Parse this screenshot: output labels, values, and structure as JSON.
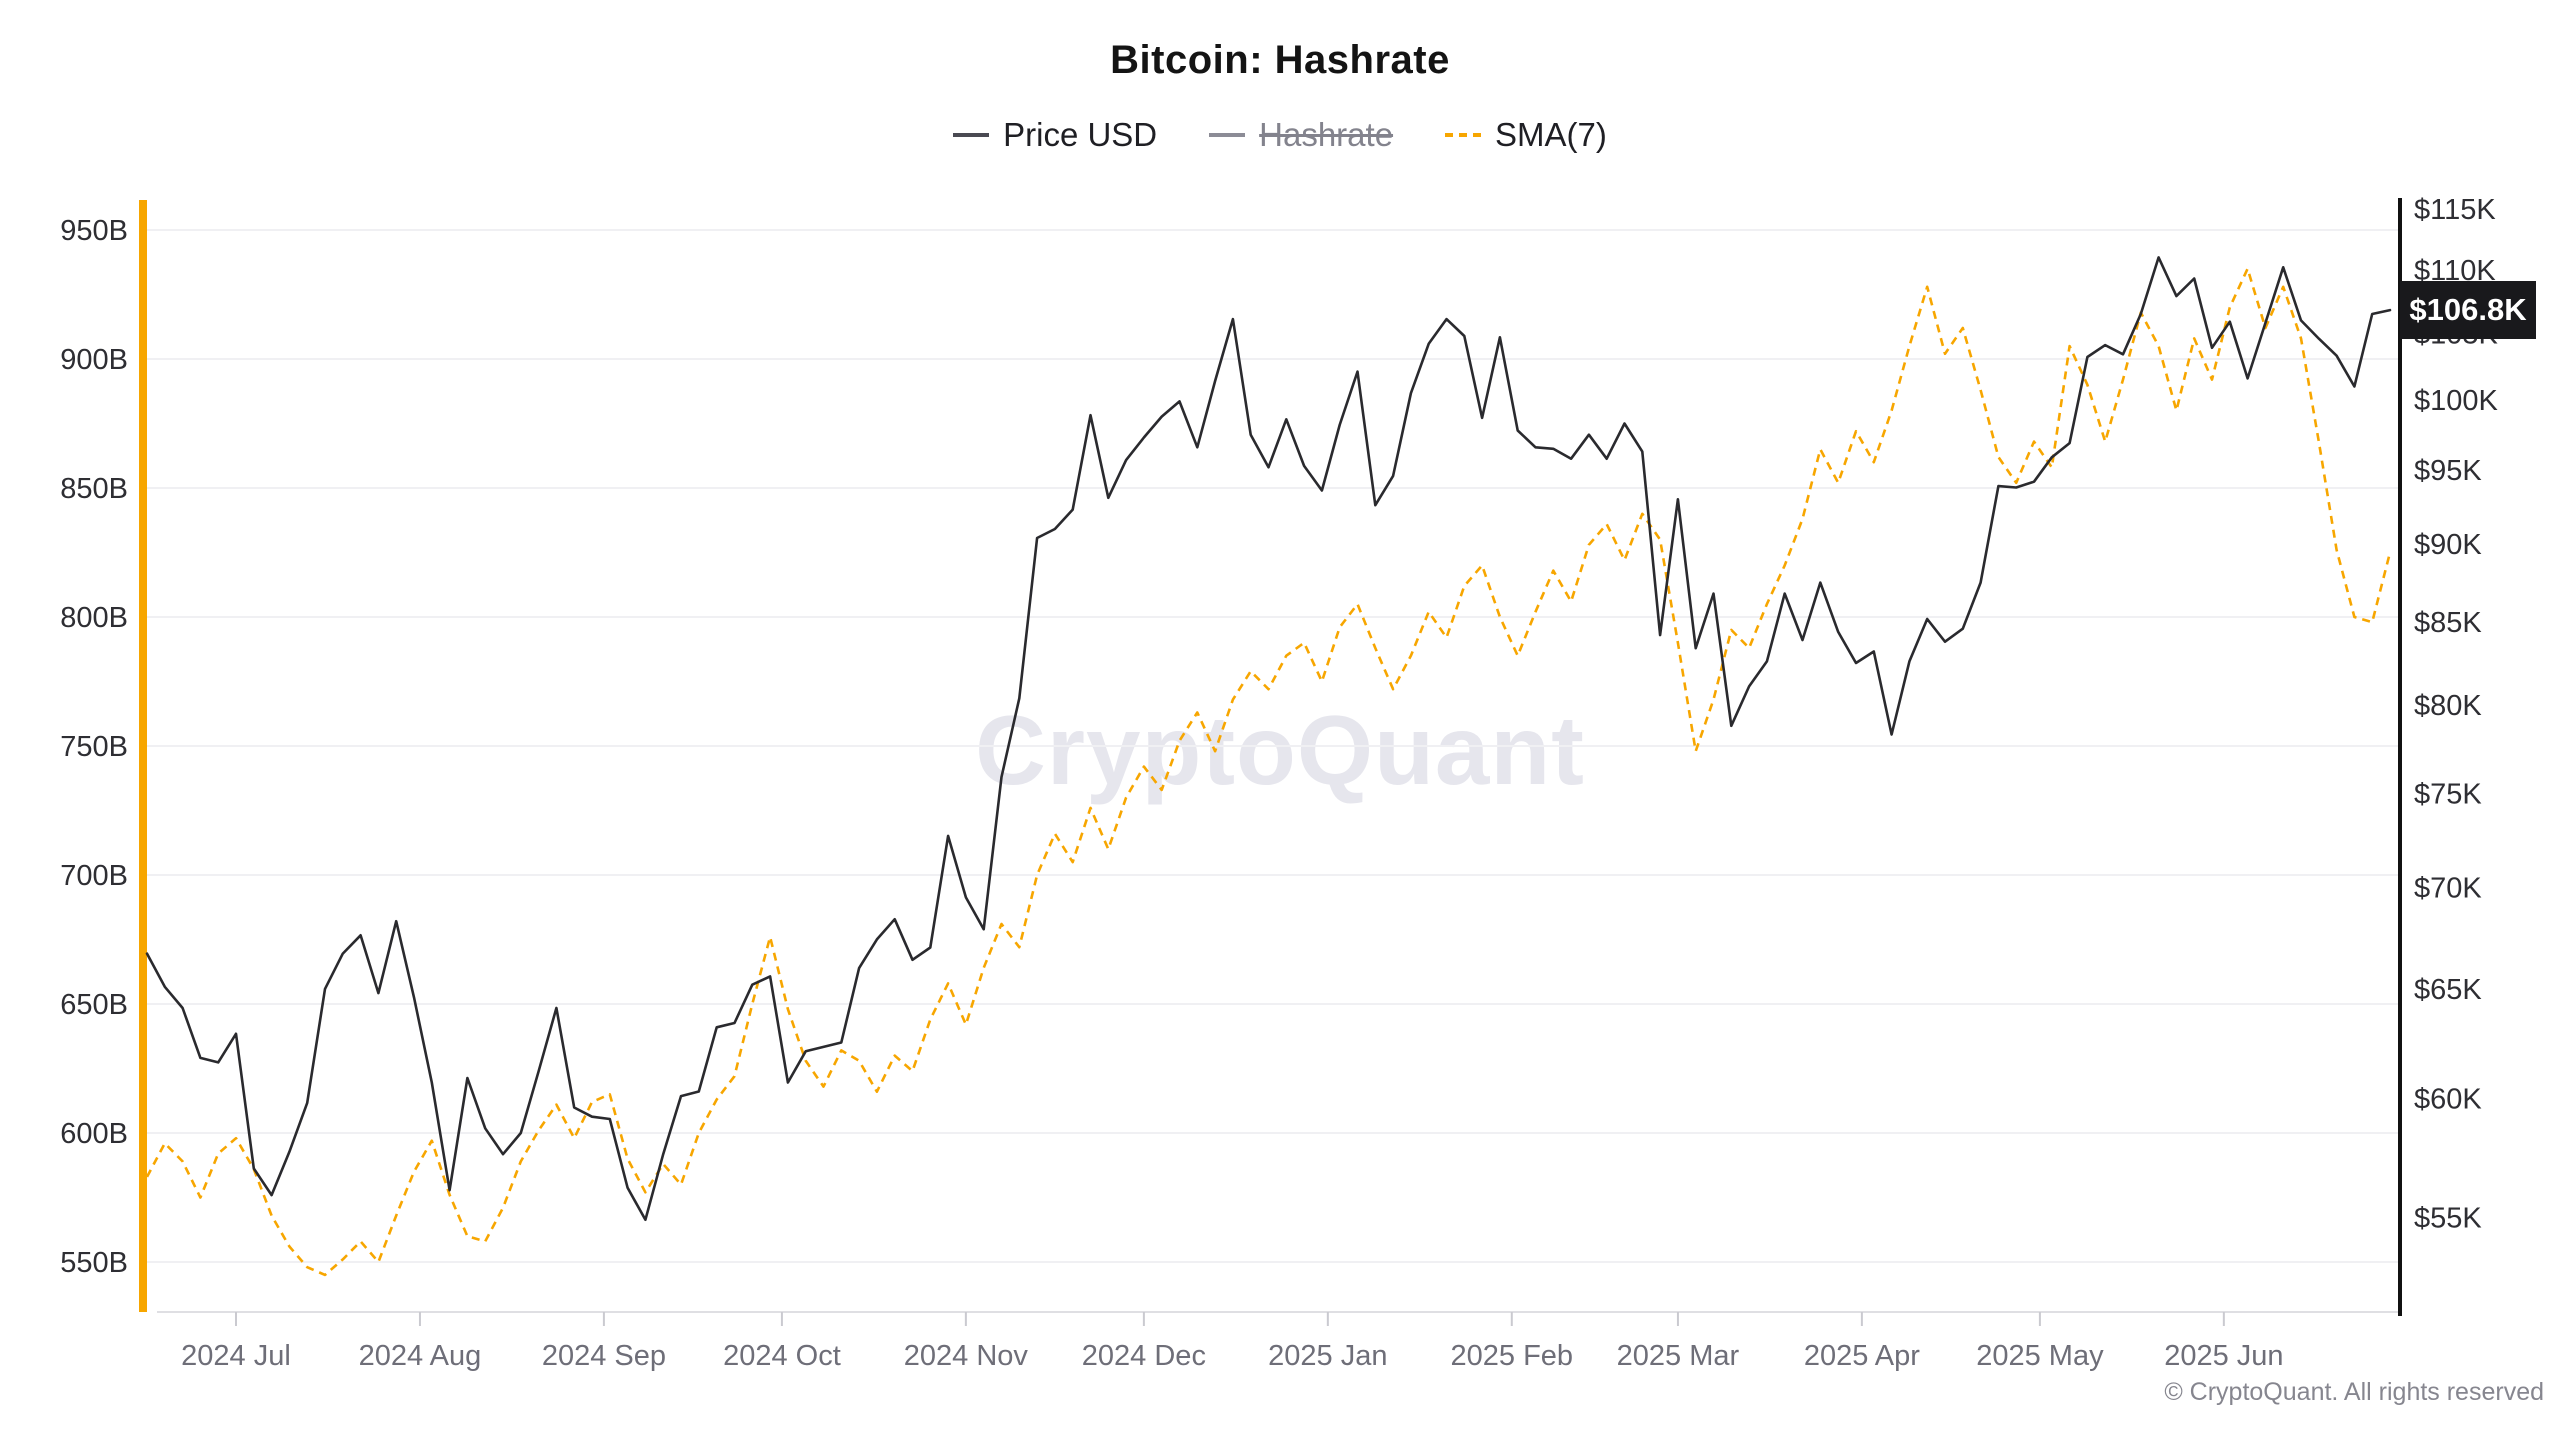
{
  "header": {
    "title": "Bitcoin: Hashrate"
  },
  "legend": [
    {
      "label": "Price USD",
      "color": "#4a4a52",
      "style": "solid",
      "disabled": false
    },
    {
      "label": "Hashrate",
      "color": "#8c8c96",
      "style": "solid",
      "disabled": true
    },
    {
      "label": "SMA(7)",
      "color": "#f7a600",
      "style": "dashed",
      "disabled": false
    }
  ],
  "price_badge": {
    "label": "$106.8K",
    "value": 106.8,
    "bg": "#19191c",
    "fg": "#ffffff"
  },
  "watermark": "CryptoQuant",
  "footer": {
    "copyright": "© CryptoQuant. All rights reserved"
  },
  "colors": {
    "accent_orange": "#f7a600",
    "price_line": "#2a2a2e",
    "sma_line": "#f7a600",
    "grid": "#f0f0f3",
    "axis_text": "#2e2e33",
    "month_text": "#6e6e78",
    "right_axis_line": "#111111",
    "bottom_axis_line": "#dfdfe3"
  },
  "chart_data": {
    "type": "line",
    "title": "Bitcoin: Hashrate",
    "x": {
      "start": "2024-06-16",
      "end": "2025-06-28",
      "n_points": 127,
      "interval_days": 3
    },
    "x_tick_labels": [
      "2024 Jul",
      "2024 Aug",
      "2024 Sep",
      "2024 Oct",
      "2024 Nov",
      "2024 Dec",
      "2025 Jan",
      "2025 Feb",
      "2025 Mar",
      "2025 Apr",
      "2025 May",
      "2025 Jun"
    ],
    "x_tick_day_offsets": [
      15,
      46,
      77,
      107,
      138,
      168,
      199,
      230,
      258,
      289,
      319,
      350
    ],
    "left_axis": {
      "name": "Hashrate",
      "scale": "linear",
      "tick_labels": [
        "950B",
        "900B",
        "850B",
        "800B",
        "750B",
        "700B",
        "650B",
        "600B",
        "550B"
      ],
      "tick_values": [
        950,
        900,
        850,
        800,
        750,
        700,
        650,
        600,
        550
      ],
      "range": [
        550,
        950
      ],
      "grid": true
    },
    "right_axis": {
      "name": "Price USD",
      "scale": "log",
      "tick_labels": [
        "$115K",
        "$110K",
        "$105K",
        "$100K",
        "$95K",
        "$90K",
        "$85K",
        "$80K",
        "$75K",
        "$70K",
        "$65K",
        "$60K",
        "$55K"
      ],
      "tick_values": [
        115,
        110,
        105,
        100,
        95,
        90,
        85,
        80,
        75,
        70,
        65,
        60,
        55
      ],
      "range": [
        55,
        115
      ],
      "grid": false
    },
    "series": [
      {
        "name": "Price USD",
        "axis": "right",
        "unit": "K USD",
        "style": "solid",
        "color": "#2a2a2e",
        "last_value_label": "$106.8K",
        "values": [
          66.7,
          65.1,
          64.1,
          61.8,
          61.6,
          62.9,
          57.0,
          55.9,
          57.7,
          59.8,
          65.0,
          66.7,
          67.6,
          64.8,
          68.3,
          64.6,
          60.7,
          56.1,
          60.9,
          58.7,
          57.6,
          58.5,
          61.2,
          64.1,
          59.6,
          59.2,
          59.1,
          56.2,
          54.9,
          57.6,
          60.1,
          60.3,
          63.2,
          63.4,
          65.2,
          65.6,
          60.7,
          62.1,
          62.3,
          62.5,
          66.0,
          67.4,
          68.4,
          66.4,
          67.0,
          72.7,
          69.5,
          67.9,
          75.9,
          80.4,
          90.4,
          91.0,
          92.3,
          98.9,
          93.1,
          95.7,
          97.3,
          98.8,
          99.9,
          96.6,
          101.4,
          106.1,
          97.5,
          95.2,
          98.6,
          95.3,
          93.6,
          98.2,
          102.1,
          92.6,
          94.6,
          100.5,
          104.2,
          106.1,
          104.8,
          98.7,
          104.7,
          97.8,
          96.6,
          96.5,
          95.8,
          97.5,
          95.8,
          98.3,
          96.3,
          84.2,
          93.0,
          83.4,
          86.8,
          78.8,
          81.1,
          82.6,
          86.8,
          83.9,
          87.5,
          84.4,
          82.5,
          83.2,
          78.3,
          82.6,
          85.2,
          83.8,
          84.6,
          87.5,
          93.9,
          93.8,
          94.2,
          95.9,
          96.9,
          103.2,
          104.1,
          103.4,
          106.5,
          111.0,
          107.9,
          109.3,
          103.9,
          105.9,
          101.6,
          105.8,
          110.2,
          106.0,
          104.6,
          103.3,
          101.0,
          106.5,
          106.8
        ]
      },
      {
        "name": "SMA(7)",
        "axis": "left",
        "unit": "B",
        "style": "dashed",
        "color": "#f7a600",
        "values": [
          583,
          596,
          589,
          575,
          592,
          598,
          586,
          568,
          556,
          548,
          545,
          551,
          558,
          550,
          568,
          585,
          597,
          576,
          560,
          558,
          571,
          589,
          601,
          611,
          598,
          612,
          615,
          590,
          577,
          588,
          580,
          600,
          613,
          622,
          650,
          676,
          648,
          628,
          618,
          632,
          628,
          616,
          630,
          624,
          644,
          658,
          642,
          664,
          681,
          672,
          700,
          716,
          705,
          726,
          710,
          730,
          742,
          733,
          752,
          763,
          748,
          768,
          779,
          772,
          785,
          790,
          775,
          796,
          805,
          788,
          772,
          785,
          802,
          792,
          812,
          820,
          800,
          785,
          802,
          818,
          806,
          828,
          836,
          822,
          840,
          830,
          790,
          748,
          768,
          795,
          788,
          805,
          820,
          838,
          865,
          852,
          872,
          860,
          880,
          905,
          928,
          902,
          912,
          888,
          862,
          852,
          868,
          858,
          905,
          890,
          868,
          892,
          918,
          905,
          880,
          908,
          892,
          920,
          935,
          912,
          928,
          908,
          868,
          826,
          800,
          798,
          825
        ]
      },
      {
        "name": "Hashrate",
        "axis": "left",
        "unit": "B",
        "style": "solid",
        "color": "#8c8c96",
        "disabled": true,
        "values": []
      }
    ]
  }
}
